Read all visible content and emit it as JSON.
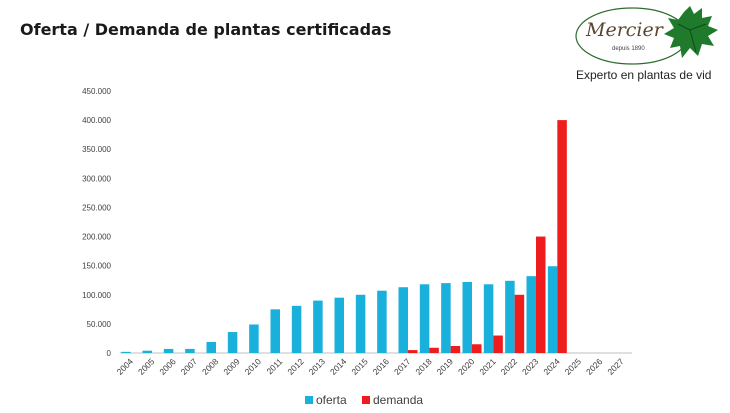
{
  "slide": {
    "title": "Oferta / Demanda de plantas certificadas"
  },
  "logo": {
    "brand": "Mercier",
    "since": "depuis 1890",
    "tagline": "Experto en plantas de vid",
    "icon": "vine-leaf-icon"
  },
  "chart_data": {
    "type": "bar",
    "categories": [
      "2004",
      "2005",
      "2006",
      "2007",
      "2008",
      "2009",
      "2010",
      "2011",
      "2012",
      "2013",
      "2014",
      "2015",
      "2016",
      "2017",
      "2018",
      "2019",
      "2020",
      "2021",
      "2022",
      "2023",
      "2024",
      "2025",
      "2026",
      "2027"
    ],
    "series": [
      {
        "name": "oferta",
        "color": "#1ab0dc",
        "values": [
          2000,
          4000,
          7000,
          7000,
          19000,
          36000,
          49000,
          75000,
          81000,
          90000,
          95000,
          100000,
          107000,
          113000,
          118000,
          120000,
          122000,
          118000,
          124000,
          132000,
          149000,
          null,
          null,
          null
        ]
      },
      {
        "name": "demanda",
        "color": "#ee1c1c",
        "values": [
          null,
          null,
          null,
          null,
          null,
          null,
          null,
          null,
          null,
          null,
          null,
          null,
          null,
          5000,
          9000,
          12000,
          15000,
          30000,
          100000,
          200000,
          400000,
          null,
          null,
          null
        ]
      }
    ],
    "y_ticks": [
      "0",
      "50.000",
      "100.000",
      "150.000",
      "200.000",
      "250.000",
      "300.000",
      "350.000",
      "400.000",
      "450.000"
    ],
    "ylim": [
      0,
      450000
    ],
    "grid": false,
    "legend": "bottom"
  }
}
